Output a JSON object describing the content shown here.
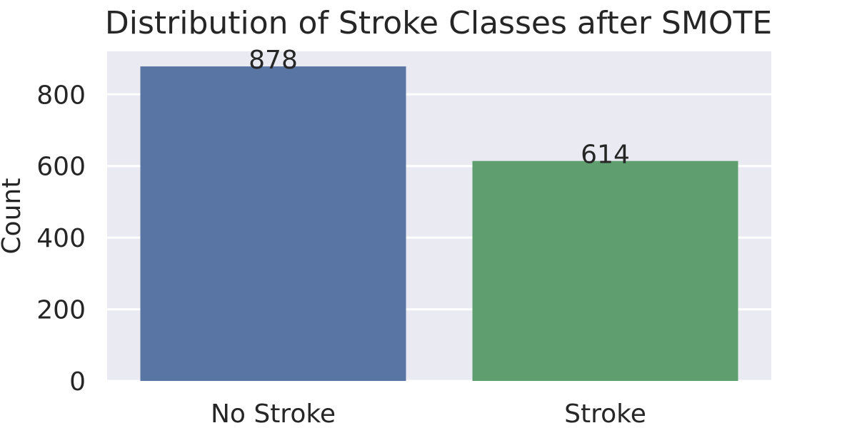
{
  "chart_data": {
    "type": "bar",
    "title": "Distribution of Stroke Classes after SMOTE",
    "xlabel": "",
    "ylabel": "Count",
    "categories": [
      "No Stroke",
      "Stroke"
    ],
    "values": [
      878,
      614
    ],
    "data_labels": [
      "878",
      "614"
    ],
    "ylim": [
      0,
      920
    ],
    "yticks": [
      0,
      200,
      400,
      600,
      800
    ],
    "grid": true,
    "colors": {
      "plot_background": "#eaeaf2",
      "bars": [
        "#5975a4",
        "#5f9e6e"
      ],
      "grid": "#ffffff",
      "text": "#262626"
    }
  }
}
